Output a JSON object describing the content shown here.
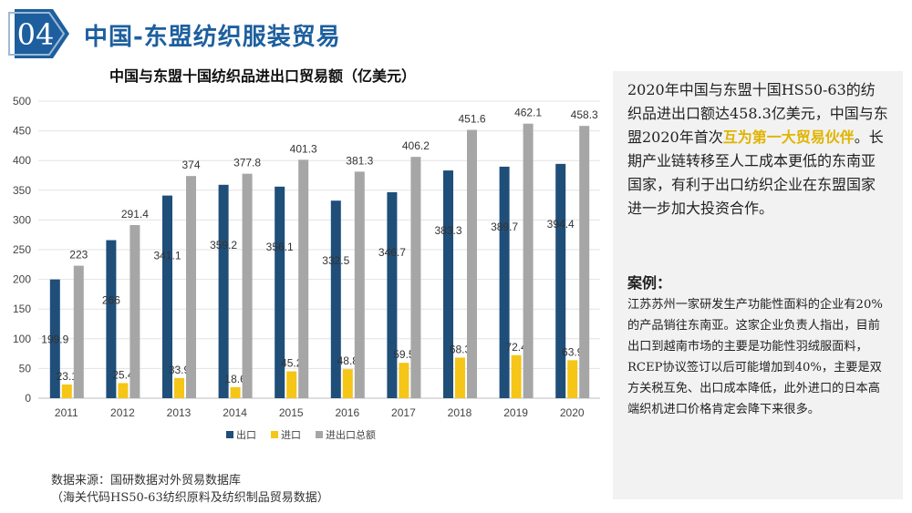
{
  "header": {
    "number": "04",
    "title": "中国-东盟纺织服装贸易"
  },
  "chart_data": {
    "type": "bar",
    "title": "中国与东盟十国纺织品进出口贸易额（亿美元）",
    "categories": [
      "2011",
      "2012",
      "2013",
      "2014",
      "2015",
      "2016",
      "2017",
      "2018",
      "2019",
      "2020"
    ],
    "series": [
      {
        "name": "出口",
        "color": "#1f4e79",
        "values": [
          199.9,
          266,
          341.1,
          359.2,
          356.1,
          332.5,
          346.7,
          383.3,
          389.7,
          394.4
        ],
        "labels": [
          "199.9",
          "266",
          "341.1",
          "359.2",
          "356.1",
          "332.5",
          "346.7",
          "383.3",
          "389.7",
          "394.4"
        ]
      },
      {
        "name": "进口",
        "color": "#f5c518",
        "values": [
          23.1,
          25.4,
          33.9,
          18.6,
          45.2,
          48.8,
          59.5,
          68.3,
          72.4,
          63.9
        ],
        "labels": [
          "23.1",
          "25.4",
          "33.9",
          "18.6",
          "45.2",
          "48.8",
          "59.5",
          "68.3",
          "72.4",
          "63.9"
        ]
      },
      {
        "name": "进出口总额",
        "color": "#a6a6a6",
        "values": [
          223,
          291.4,
          374,
          377.8,
          401.3,
          381.3,
          406.2,
          451.6,
          462.1,
          458.3
        ],
        "labels": [
          "223",
          "291.4",
          "374",
          "377.8",
          "401.3",
          "381.3",
          "406.2",
          "451.6",
          "462.1",
          "458.3"
        ]
      }
    ],
    "ylim": [
      0,
      500
    ],
    "yticks": [
      0,
      50,
      100,
      150,
      200,
      250,
      300,
      350,
      400,
      450,
      500
    ],
    "grid": true,
    "legend": "bottom"
  },
  "summary": {
    "part1": "2020年中国与东盟十国HS50-63的纺织品进出口额达458.3亿美元，中国与东盟2020年首次",
    "highlight": "互为第一大贸易伙伴",
    "part2": "。长期产业链转移至人工成本更低的东南亚国家，有利于出口纺织企业在东盟国家进一步加大投资合作。"
  },
  "case": {
    "heading": "案例：",
    "body": "江苏苏州一家研发生产功能性面料的企业有20%的产品销往东南亚。这家企业负责人指出，目前出口到越南市场的主要是功能性羽绒服面料，RCEP协议签订以后可能增加到40%，主要是双方关税互免、出口成本降低，此外进口的日本高端织机进口价格肯定会降下来很多。"
  },
  "source": {
    "line1": "数据来源：国研数据对外贸易数据库",
    "line2": "（海关代码HS50-63纺织原料及纺织制品贸易数据）"
  }
}
